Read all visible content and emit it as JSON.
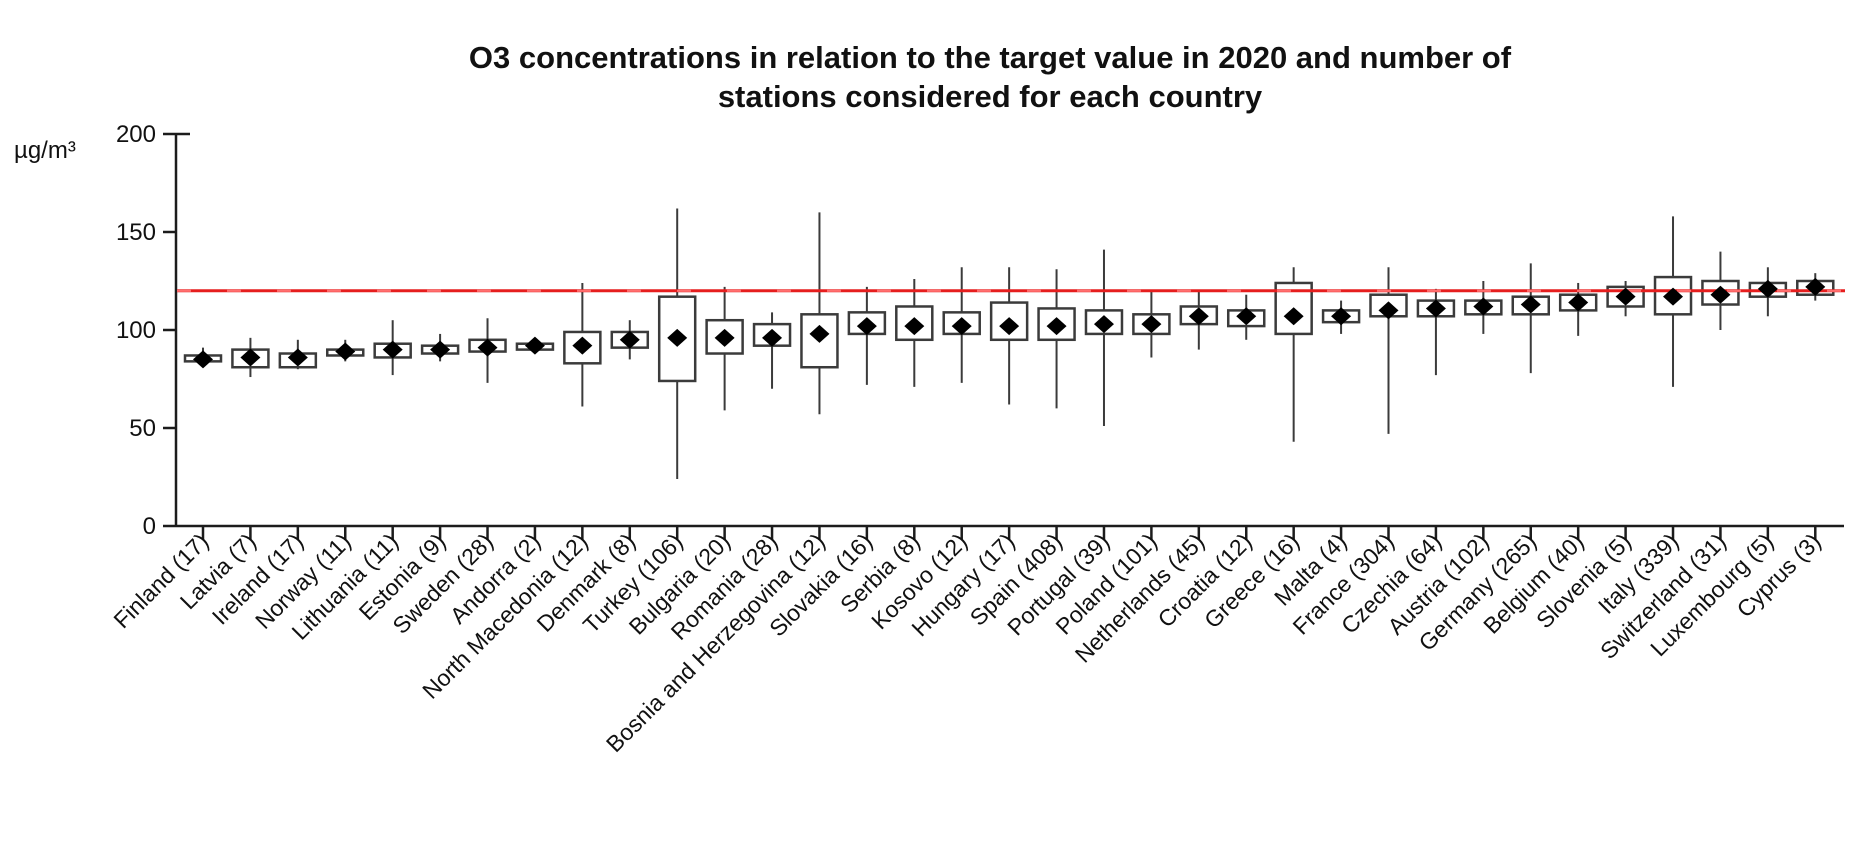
{
  "chart_data": {
    "type": "boxplot",
    "title": "O3 concentrations in relation to the target value in 2020 and number of stations considered for each country",
    "title_line1": "O3 concentrations in relation to the target value in 2020 and number of",
    "title_line2": "stations considered for each country",
    "y_unit": "µg/m³",
    "ylabel": "",
    "xlabel": "",
    "ylim": [
      0,
      200
    ],
    "y_ticks": [
      0,
      50,
      100,
      150,
      200
    ],
    "grid": false,
    "legend": "none",
    "target_line": {
      "value": 120,
      "color": "#e61e1e",
      "dash_highlight_color": "#ff6f6f"
    },
    "colors": {
      "box_stroke": "#3b3b3b",
      "mean_marker": "#000000",
      "axis_ink": "#1c1c1c"
    },
    "marker_meaning": "black diamond = mean concentration per country",
    "countries": [
      {
        "name": "Finland",
        "stations": 17,
        "label": "Finland (17)",
        "whisker_low": 81,
        "q1": 84,
        "mean": 85,
        "q3": 87,
        "whisker_high": 91
      },
      {
        "name": "Latvia",
        "stations": 7,
        "label": "Latvia (7)",
        "whisker_low": 76,
        "q1": 81,
        "mean": 86,
        "q3": 90,
        "whisker_high": 96
      },
      {
        "name": "Ireland",
        "stations": 17,
        "label": "Ireland (17)",
        "whisker_low": 80,
        "q1": 81,
        "mean": 86,
        "q3": 88,
        "whisker_high": 95
      },
      {
        "name": "Norway",
        "stations": 11,
        "label": "Norway (11)",
        "whisker_low": 84,
        "q1": 87,
        "mean": 89,
        "q3": 90,
        "whisker_high": 95
      },
      {
        "name": "Lithuania",
        "stations": 11,
        "label": "Lithuania (11)",
        "whisker_low": 77,
        "q1": 86,
        "mean": 90,
        "q3": 93,
        "whisker_high": 105
      },
      {
        "name": "Estonia",
        "stations": 9,
        "label": "Estonia (9)",
        "whisker_low": 84,
        "q1": 88,
        "mean": 90,
        "q3": 92,
        "whisker_high": 98
      },
      {
        "name": "Sweden",
        "stations": 28,
        "label": "Sweden (28)",
        "whisker_low": 73,
        "q1": 89,
        "mean": 91,
        "q3": 95,
        "whisker_high": 106
      },
      {
        "name": "Andorra",
        "stations": 2,
        "label": "Andorra (2)",
        "whisker_low": 88,
        "q1": 90,
        "mean": 92,
        "q3": 93,
        "whisker_high": 96
      },
      {
        "name": "North Macedonia",
        "stations": 12,
        "label": "North Macedonia (12)",
        "whisker_low": 61,
        "q1": 83,
        "mean": 92,
        "q3": 99,
        "whisker_high": 124
      },
      {
        "name": "Denmark",
        "stations": 8,
        "label": "Denmark (8)",
        "whisker_low": 85,
        "q1": 91,
        "mean": 95,
        "q3": 99,
        "whisker_high": 105
      },
      {
        "name": "Turkey",
        "stations": 106,
        "label": "Turkey (106)",
        "whisker_low": 24,
        "q1": 74,
        "mean": 96,
        "q3": 117,
        "whisker_high": 162
      },
      {
        "name": "Bulgaria",
        "stations": 20,
        "label": "Bulgaria (20)",
        "whisker_low": 59,
        "q1": 88,
        "mean": 96,
        "q3": 105,
        "whisker_high": 122
      },
      {
        "name": "Romania",
        "stations": 28,
        "label": "Romania (28)",
        "whisker_low": 70,
        "q1": 92,
        "mean": 96,
        "q3": 103,
        "whisker_high": 109
      },
      {
        "name": "Bosnia and Herzegovina",
        "stations": 12,
        "label": "Bosnia and Herzegovina (12)",
        "whisker_low": 57,
        "q1": 81,
        "mean": 98,
        "q3": 108,
        "whisker_high": 160
      },
      {
        "name": "Slovakia",
        "stations": 16,
        "label": "Slovakia (16)",
        "whisker_low": 72,
        "q1": 98,
        "mean": 102,
        "q3": 109,
        "whisker_high": 122
      },
      {
        "name": "Serbia",
        "stations": 8,
        "label": "Serbia (8)",
        "whisker_low": 71,
        "q1": 95,
        "mean": 102,
        "q3": 112,
        "whisker_high": 126
      },
      {
        "name": "Kosovo",
        "stations": 12,
        "label": "Kosovo (12)",
        "whisker_low": 73,
        "q1": 98,
        "mean": 102,
        "q3": 109,
        "whisker_high": 132
      },
      {
        "name": "Hungary",
        "stations": 17,
        "label": "Hungary (17)",
        "whisker_low": 62,
        "q1": 95,
        "mean": 102,
        "q3": 114,
        "whisker_high": 132
      },
      {
        "name": "Spain",
        "stations": 408,
        "label": "Spain (408)",
        "whisker_low": 60,
        "q1": 95,
        "mean": 102,
        "q3": 111,
        "whisker_high": 131
      },
      {
        "name": "Portugal",
        "stations": 39,
        "label": "Portugal (39)",
        "whisker_low": 51,
        "q1": 98,
        "mean": 103,
        "q3": 110,
        "whisker_high": 141
      },
      {
        "name": "Poland",
        "stations": 101,
        "label": "Poland (101)",
        "whisker_low": 86,
        "q1": 98,
        "mean": 103,
        "q3": 108,
        "whisker_high": 120
      },
      {
        "name": "Netherlands",
        "stations": 45,
        "label": "Netherlands (45)",
        "whisker_low": 90,
        "q1": 103,
        "mean": 107,
        "q3": 112,
        "whisker_high": 120
      },
      {
        "name": "Croatia",
        "stations": 12,
        "label": "Croatia (12)",
        "whisker_low": 95,
        "q1": 102,
        "mean": 107,
        "q3": 110,
        "whisker_high": 118
      },
      {
        "name": "Greece",
        "stations": 16,
        "label": "Greece (16)",
        "whisker_low": 43,
        "q1": 98,
        "mean": 107,
        "q3": 124,
        "whisker_high": 132
      },
      {
        "name": "Malta",
        "stations": 4,
        "label": "Malta (4)",
        "whisker_low": 98,
        "q1": 104,
        "mean": 107,
        "q3": 110,
        "whisker_high": 115
      },
      {
        "name": "France",
        "stations": 304,
        "label": "France (304)",
        "whisker_low": 47,
        "q1": 107,
        "mean": 110,
        "q3": 118,
        "whisker_high": 132
      },
      {
        "name": "Czechia",
        "stations": 64,
        "label": "Czechia (64)",
        "whisker_low": 77,
        "q1": 107,
        "mean": 111,
        "q3": 115,
        "whisker_high": 121
      },
      {
        "name": "Austria",
        "stations": 102,
        "label": "Austria (102)",
        "whisker_low": 98,
        "q1": 108,
        "mean": 112,
        "q3": 115,
        "whisker_high": 125
      },
      {
        "name": "Germany",
        "stations": 265,
        "label": "Germany (265)",
        "whisker_low": 78,
        "q1": 108,
        "mean": 113,
        "q3": 117,
        "whisker_high": 134
      },
      {
        "name": "Belgium",
        "stations": 40,
        "label": "Belgium (40)",
        "whisker_low": 97,
        "q1": 110,
        "mean": 114,
        "q3": 118,
        "whisker_high": 124
      },
      {
        "name": "Slovenia",
        "stations": 5,
        "label": "Slovenia (5)",
        "whisker_low": 107,
        "q1": 112,
        "mean": 117,
        "q3": 122,
        "whisker_high": 125
      },
      {
        "name": "Italy",
        "stations": 339,
        "label": "Italy (339)",
        "whisker_low": 71,
        "q1": 108,
        "mean": 117,
        "q3": 127,
        "whisker_high": 158
      },
      {
        "name": "Switzerland",
        "stations": 31,
        "label": "Switzerland (31)",
        "whisker_low": 100,
        "q1": 113,
        "mean": 118,
        "q3": 125,
        "whisker_high": 140
      },
      {
        "name": "Luxembourg",
        "stations": 5,
        "label": "Luxembourg (5)",
        "whisker_low": 107,
        "q1": 117,
        "mean": 121,
        "q3": 124,
        "whisker_high": 132
      },
      {
        "name": "Cyprus",
        "stations": 3,
        "label": "Cyprus (3)",
        "whisker_low": 115,
        "q1": 118,
        "mean": 122,
        "q3": 125,
        "whisker_high": 129
      }
    ]
  }
}
